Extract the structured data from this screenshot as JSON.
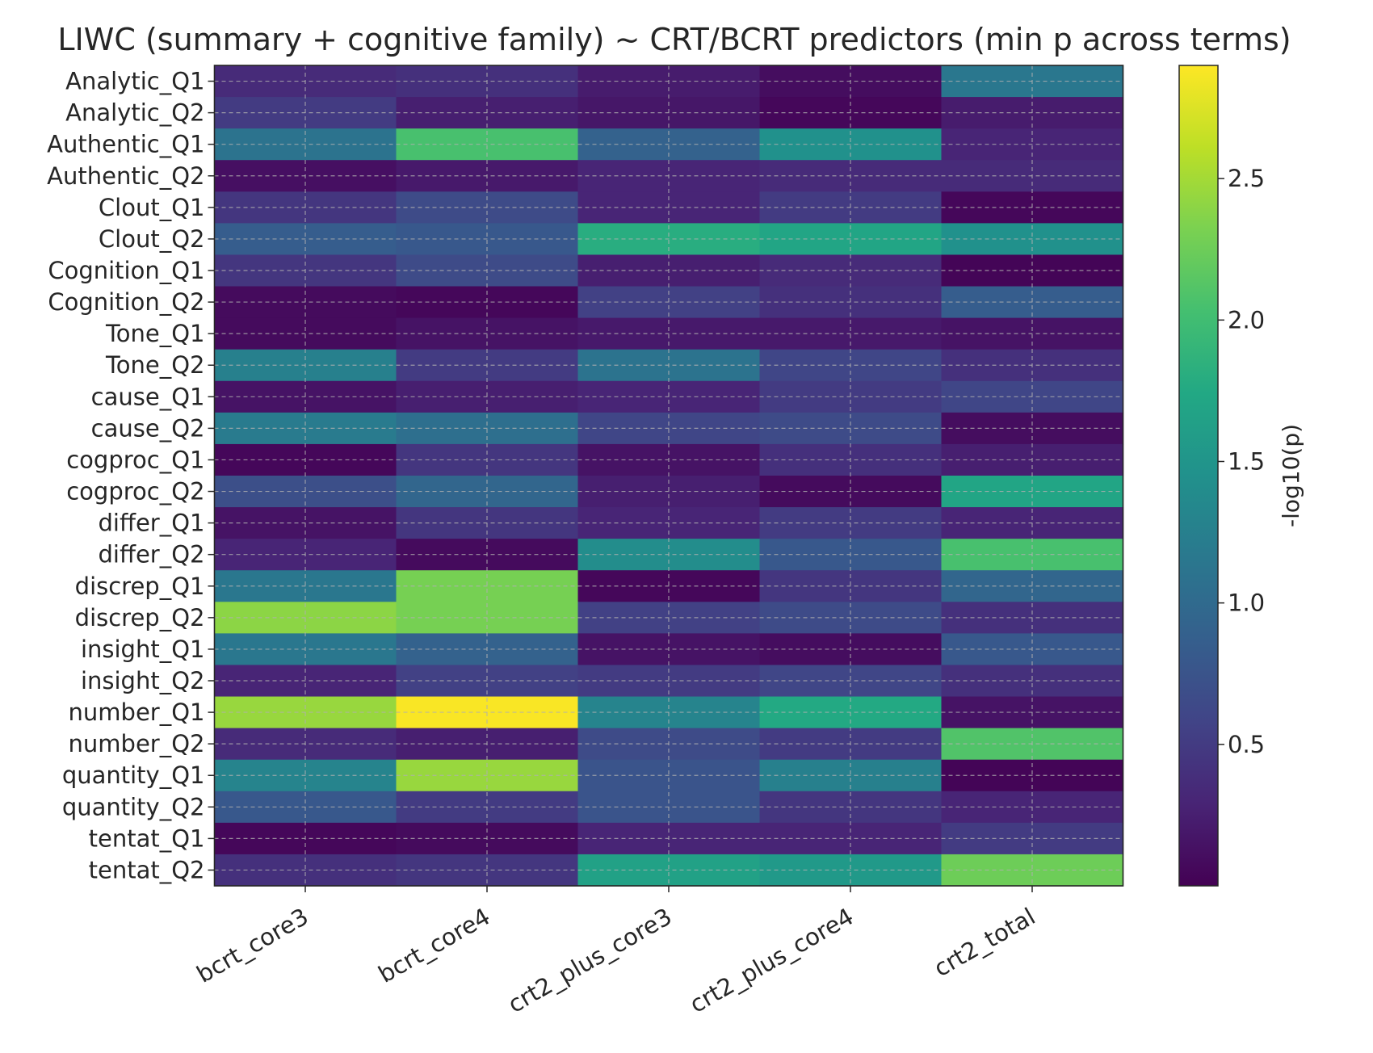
{
  "chart_data": {
    "type": "heatmap",
    "title": "LIWC (summary + cognitive family) ~ CRT/BCRT predictors (min p across terms)",
    "columns": [
      "bcrt_core3",
      "bcrt_core4",
      "crt2_plus_core3",
      "crt2_plus_core4",
      "crt2_total"
    ],
    "rows": [
      "Analytic_Q1",
      "Analytic_Q2",
      "Authentic_Q1",
      "Authentic_Q2",
      "Clout_Q1",
      "Clout_Q2",
      "Cognition_Q1",
      "Cognition_Q2",
      "Tone_Q1",
      "Tone_Q2",
      "cause_Q1",
      "cause_Q2",
      "cogproc_Q1",
      "cogproc_Q2",
      "differ_Q1",
      "differ_Q2",
      "discrep_Q1",
      "discrep_Q2",
      "insight_Q1",
      "insight_Q2",
      "number_Q1",
      "number_Q2",
      "quantity_Q1",
      "quantity_Q2",
      "tentat_Q1",
      "tentat_Q2"
    ],
    "values": [
      [
        0.35,
        0.4,
        0.22,
        0.1,
        1.15
      ],
      [
        0.5,
        0.25,
        0.18,
        0.05,
        0.22
      ],
      [
        1.1,
        2.05,
        0.9,
        1.45,
        0.3
      ],
      [
        0.12,
        0.2,
        0.3,
        0.35,
        0.35
      ],
      [
        0.45,
        0.65,
        0.3,
        0.5,
        0.05
      ],
      [
        0.85,
        0.8,
        1.8,
        1.7,
        1.45
      ],
      [
        0.45,
        0.65,
        0.25,
        0.35,
        0.03
      ],
      [
        0.08,
        0.05,
        0.55,
        0.4,
        0.85
      ],
      [
        0.08,
        0.15,
        0.2,
        0.2,
        0.15
      ],
      [
        1.25,
        0.5,
        1.1,
        0.6,
        0.4
      ],
      [
        0.15,
        0.25,
        0.3,
        0.5,
        0.6
      ],
      [
        1.2,
        1.05,
        0.6,
        0.65,
        0.1
      ],
      [
        0.05,
        0.45,
        0.15,
        0.4,
        0.25
      ],
      [
        0.7,
        0.95,
        0.25,
        0.08,
        1.7
      ],
      [
        0.15,
        0.45,
        0.3,
        0.5,
        0.3
      ],
      [
        0.3,
        0.08,
        1.4,
        0.8,
        2.05
      ],
      [
        1.15,
        2.3,
        0.05,
        0.45,
        0.95
      ],
      [
        2.4,
        2.3,
        0.55,
        0.65,
        0.4
      ],
      [
        1.15,
        0.9,
        0.15,
        0.1,
        0.8
      ],
      [
        0.3,
        0.55,
        0.5,
        0.6,
        0.4
      ],
      [
        2.45,
        2.88,
        1.3,
        1.75,
        0.15
      ],
      [
        0.35,
        0.25,
        0.65,
        0.5,
        2.1
      ],
      [
        1.3,
        2.45,
        0.75,
        1.25,
        0.03
      ],
      [
        0.8,
        0.5,
        0.75,
        0.45,
        0.3
      ],
      [
        0.05,
        0.08,
        0.3,
        0.3,
        0.5
      ],
      [
        0.4,
        0.45,
        1.65,
        1.55,
        2.25
      ]
    ],
    "colormap": "viridis",
    "vmin": 0.0,
    "vmax": 2.9,
    "colorbar": {
      "label": "-log10(p)",
      "ticks": [
        0.5,
        1.0,
        1.5,
        2.0,
        2.5
      ],
      "tick_labels": [
        "0.5",
        "1.0",
        "1.5",
        "2.0",
        "2.5"
      ]
    },
    "grid": true,
    "xtick_rotation": "30 degrees"
  }
}
